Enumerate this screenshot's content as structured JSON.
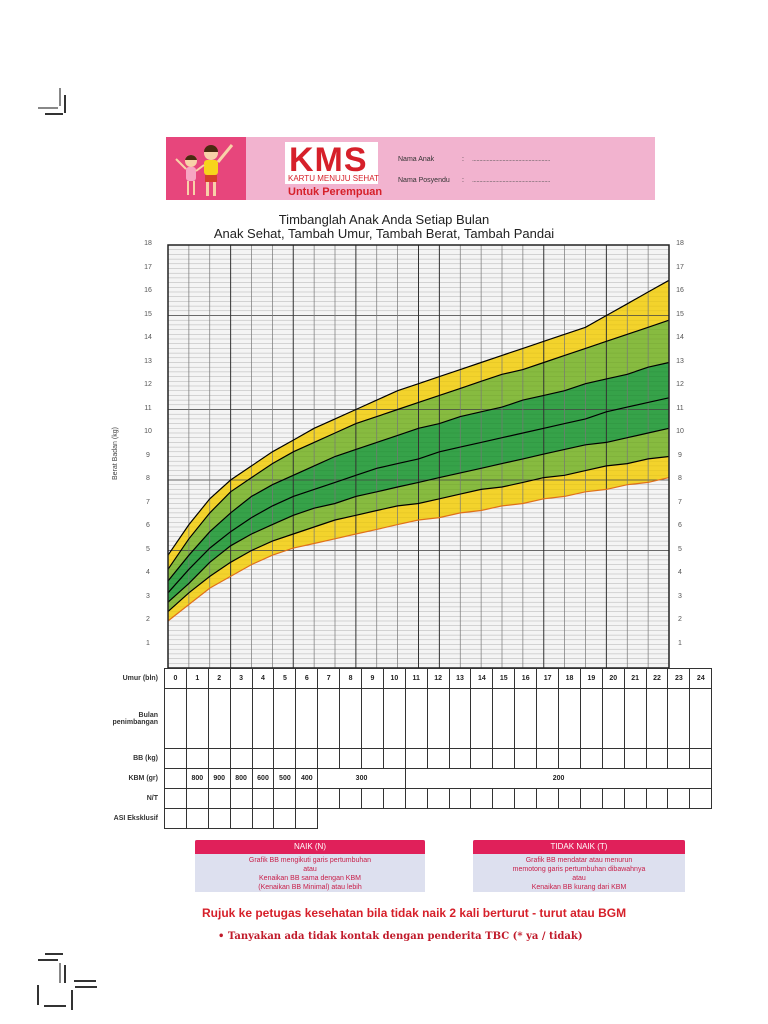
{
  "header": {
    "logo": "KMS",
    "logo_subtitle": "KARTU MENUJU SEHAT",
    "gender_label": "Untuk Perempuan",
    "fields": [
      {
        "label": "Nama Anak",
        "sep": ":",
        "value": "......................................................"
      },
      {
        "label": "Nama Posyendu",
        "sep": ":",
        "value": "......................................................"
      }
    ],
    "colors": {
      "header_bg": "#f2b3cf",
      "kids_panel": "#e7467c",
      "logo_red": "#d6202a"
    }
  },
  "titles": {
    "line1": "Timbanglah Anak Anda Setiap Bulan",
    "line2": "Anak Sehat, Tambah Umur, Tambah Berat, Tambah Pandai"
  },
  "chart_data": {
    "type": "area",
    "title": "Timbanglah Anak Anda Setiap Bulan / Anak Sehat, Tambah Umur, Tambah Berat, Tambah Pandai",
    "xlabel": "Umur (bln)",
    "ylabel": "Berat Badan (kg)",
    "x": [
      0,
      1,
      2,
      3,
      4,
      5,
      6,
      7,
      8,
      9,
      10,
      11,
      12,
      13,
      14,
      15,
      16,
      17,
      18,
      19,
      20,
      21,
      22,
      23,
      24
    ],
    "ylim": [
      0,
      18
    ],
    "xlim": [
      0,
      24
    ],
    "yticks": [
      1,
      2,
      3,
      4,
      5,
      6,
      7,
      8,
      9,
      10,
      11,
      12,
      13,
      14,
      15,
      16,
      17,
      18
    ],
    "grid": true,
    "legend_position": "none",
    "series": [
      {
        "name": "+3SD (top, yellow upper edge)",
        "color": "#000000",
        "values": [
          4.8,
          6.1,
          7.2,
          8.0,
          8.6,
          9.2,
          9.7,
          10.2,
          10.6,
          11.0,
          11.4,
          11.8,
          12.1,
          12.4,
          12.7,
          13.0,
          13.3,
          13.6,
          13.9,
          14.2,
          14.5,
          15.0,
          15.5,
          16.0,
          16.5
        ]
      },
      {
        "name": "+2SD",
        "color": "#000000",
        "values": [
          4.2,
          5.5,
          6.6,
          7.5,
          8.1,
          8.7,
          9.2,
          9.6,
          10.0,
          10.4,
          10.7,
          11.0,
          11.3,
          11.6,
          11.9,
          12.2,
          12.5,
          12.7,
          13.0,
          13.3,
          13.6,
          13.9,
          14.2,
          14.5,
          14.8
        ]
      },
      {
        "name": "+1SD",
        "color": "#000000",
        "values": [
          3.7,
          4.8,
          5.8,
          6.6,
          7.3,
          7.8,
          8.2,
          8.6,
          9.0,
          9.3,
          9.6,
          9.9,
          10.2,
          10.4,
          10.7,
          10.9,
          11.1,
          11.4,
          11.6,
          11.8,
          12.1,
          12.3,
          12.5,
          12.8,
          13.0
        ]
      },
      {
        "name": "Median",
        "color": "#000000",
        "values": [
          3.2,
          4.2,
          5.1,
          5.8,
          6.4,
          6.9,
          7.3,
          7.6,
          7.9,
          8.2,
          8.5,
          8.7,
          8.9,
          9.2,
          9.4,
          9.6,
          9.8,
          10.0,
          10.2,
          10.4,
          10.6,
          10.9,
          11.1,
          11.3,
          11.5
        ]
      },
      {
        "name": "-1SD",
        "color": "#000000",
        "values": [
          2.8,
          3.6,
          4.5,
          5.2,
          5.7,
          6.1,
          6.5,
          6.8,
          7.0,
          7.3,
          7.5,
          7.7,
          7.9,
          8.1,
          8.3,
          8.5,
          8.7,
          8.9,
          9.1,
          9.3,
          9.5,
          9.6,
          9.8,
          10.0,
          10.2
        ]
      },
      {
        "name": "-2SD",
        "color": "#000000",
        "values": [
          2.4,
          3.2,
          3.9,
          4.5,
          5.0,
          5.4,
          5.7,
          6.0,
          6.3,
          6.5,
          6.7,
          6.9,
          7.0,
          7.2,
          7.4,
          7.6,
          7.7,
          7.9,
          8.1,
          8.2,
          8.4,
          8.6,
          8.7,
          8.9,
          9.0
        ]
      },
      {
        "name": "-3SD (BGM, orange)",
        "color": "#e0701a",
        "values": [
          2.0,
          2.7,
          3.4,
          3.9,
          4.4,
          4.8,
          5.1,
          5.3,
          5.5,
          5.7,
          5.9,
          6.1,
          6.3,
          6.4,
          6.6,
          6.7,
          6.9,
          7.0,
          7.2,
          7.3,
          7.5,
          7.6,
          7.8,
          7.9,
          8.1
        ]
      }
    ],
    "bands": [
      {
        "between": [
          "+3SD",
          "+2SD"
        ],
        "color": "#f2cf1a"
      },
      {
        "between": [
          "+2SD",
          "+1SD"
        ],
        "color": "#7db530"
      },
      {
        "between": [
          "+1SD",
          "-1SD"
        ],
        "color": "#259a3a"
      },
      {
        "between": [
          "-1SD",
          "-2SD"
        ],
        "color": "#7db530"
      },
      {
        "between": [
          "-2SD",
          "-3SD"
        ],
        "color": "#f2cf1a"
      }
    ]
  },
  "table": {
    "rows": [
      {
        "label": "Umur (bln)",
        "cells": [
          "0",
          "1",
          "2",
          "3",
          "4",
          "5",
          "6",
          "7",
          "8",
          "9",
          "10",
          "11",
          "12",
          "13",
          "14",
          "15",
          "16",
          "17",
          "18",
          "19",
          "20",
          "21",
          "22",
          "23",
          "24"
        ]
      },
      {
        "label": "Bulan penimbangan",
        "cells": []
      },
      {
        "label": "BB (kg)",
        "cells": []
      },
      {
        "label": "KBM (gr)",
        "cells": [
          "",
          "800",
          "900",
          "800",
          "600",
          "500",
          "400",
          "300",
          "200"
        ]
      },
      {
        "label": "N/T",
        "cells": []
      },
      {
        "label": "ASI Eksklusif",
        "cells": []
      }
    ]
  },
  "legend": {
    "naik": {
      "title": "NAIK (N)",
      "lines": [
        "Grafik BB mengikuti garis pertumbuhan",
        "atau",
        "Kenaikan BB sama dengan KBM",
        "(Kenaikan BB Minimal) atau lebih"
      ]
    },
    "tidak_naik": {
      "title": "TIDAK NAIK (T)",
      "lines": [
        "Grafik BB mendatar atau menurun",
        "memotong garis pertumbuhan dibawahnya",
        "atau",
        "Kenaikan BB kurang dari KBM"
      ]
    }
  },
  "footer": {
    "rujuk": "Rujuk ke petugas kesehatan bila tidak naik 2 kali berturut - turut atau BGM",
    "tanyakan": "•   Tanyakan ada tidak kontak dengan penderita TBC (* ya / tidak)"
  }
}
